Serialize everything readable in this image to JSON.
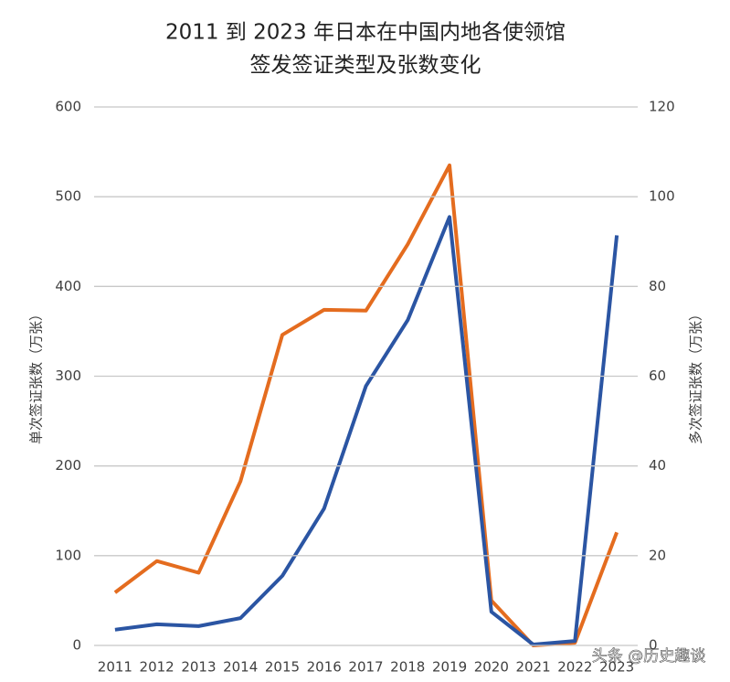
{
  "chart_data": {
    "type": "line",
    "title": [
      "2011 到 2023 年日本在中国内地各使领馆",
      "签发签证类型及张数变化"
    ],
    "ylabel": "单次签证张数（万张）",
    "y2label": "多次签证张数（万张）",
    "categories": [
      "2011",
      "2012",
      "2013",
      "2014",
      "2015",
      "2016",
      "2017",
      "2018",
      "2019",
      "2020",
      "2021",
      "2022",
      "2023"
    ],
    "series": [
      {
        "color": "#e46c1f",
        "values": [
          59,
          94,
          81,
          183,
          346,
          374,
          373,
          447,
          535,
          50,
          0,
          3,
          126
        ]
      },
      {
        "color": "#2b55a3",
        "axis": "y2",
        "values": [
          3.5,
          4.7,
          4.3,
          6.1,
          15.5,
          30.5,
          57.8,
          72.5,
          95.5,
          7.5,
          0.2,
          1,
          91.4
        ]
      }
    ],
    "ylim": [
      0,
      600
    ],
    "yticks": [
      0,
      100,
      200,
      300,
      400,
      500,
      600
    ],
    "y2lim": [
      0,
      120
    ],
    "y2ticks": [
      0,
      20,
      40,
      60,
      80,
      100,
      120
    ],
    "grid": true,
    "watermark": "头条 @历史趣谈"
  }
}
